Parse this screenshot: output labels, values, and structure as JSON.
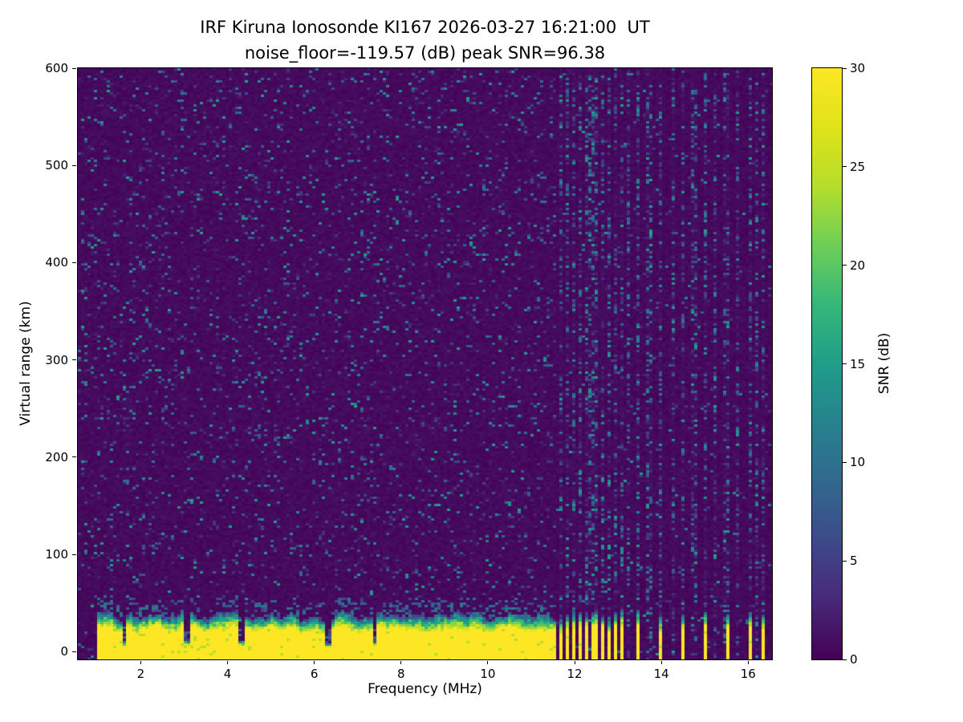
{
  "chart_data": {
    "type": "heatmap",
    "title": "IRF Kiruna Ionosonde KI167 2026-03-27 16:21:00  UT",
    "subtitle": "noise_floor=-119.57 (dB) peak SNR=96.38",
    "xlabel": "Frequency (MHz)",
    "ylabel": "Virtual range (km)",
    "x_range": [
      0.55,
      16.55
    ],
    "y_range": [
      -8,
      600
    ],
    "x_ticks": [
      2,
      4,
      6,
      8,
      10,
      12,
      14,
      16
    ],
    "y_ticks": [
      0,
      100,
      200,
      300,
      400,
      500,
      600
    ],
    "grid": false,
    "colorbar": {
      "label": "SNR (dB)",
      "min": 0,
      "max": 30,
      "ticks": [
        0,
        5,
        10,
        15,
        20,
        25,
        30
      ],
      "colormap": "viridis",
      "colormap_stops": [
        [
          0.0,
          "#440154"
        ],
        [
          0.1,
          "#482878"
        ],
        [
          0.2,
          "#3e4a89"
        ],
        [
          0.3,
          "#31688e"
        ],
        [
          0.4,
          "#26828e"
        ],
        [
          0.5,
          "#1f9e89"
        ],
        [
          0.6,
          "#35b779"
        ],
        [
          0.7,
          "#6ece58"
        ],
        [
          0.8,
          "#b5de2b"
        ],
        [
          0.9,
          "#dfe318"
        ],
        [
          1.0,
          "#fde725"
        ]
      ]
    },
    "signal": {
      "noise_floor_db": -119.57,
      "peak_snr_db": 96.38,
      "sweep_start_mhz": 0.97,
      "ground_echo": {
        "freq_end_mhz": 11.55,
        "saturated_top_km_mean": 24,
        "saturated_top_km_var": 9,
        "transition_thickness_km": 13,
        "notch_freqs_mhz": [
          1.62,
          3.05,
          4.3,
          6.3,
          7.35
        ],
        "notch_width_mhz": 0.05
      },
      "cluster_stripes_mhz": [
        11.65,
        11.8,
        11.96,
        12.11,
        12.27,
        12.42,
        12.58,
        12.73,
        12.89,
        13.04
      ],
      "sparse_stripes_mhz": [
        13.42,
        13.95,
        14.42,
        14.95,
        15.45,
        15.98,
        16.3
      ],
      "rfi_extra_columns_mhz": [
        13.2,
        13.68,
        14.2,
        14.7,
        15.2,
        15.72,
        16.15
      ],
      "stripe_width_mhz": 0.04,
      "background_speckle": {
        "left_density": 0.1,
        "right_density": 0.025,
        "rfi_column_density": 0.4,
        "max_speckle_db": 14
      },
      "seed": 42
    }
  }
}
